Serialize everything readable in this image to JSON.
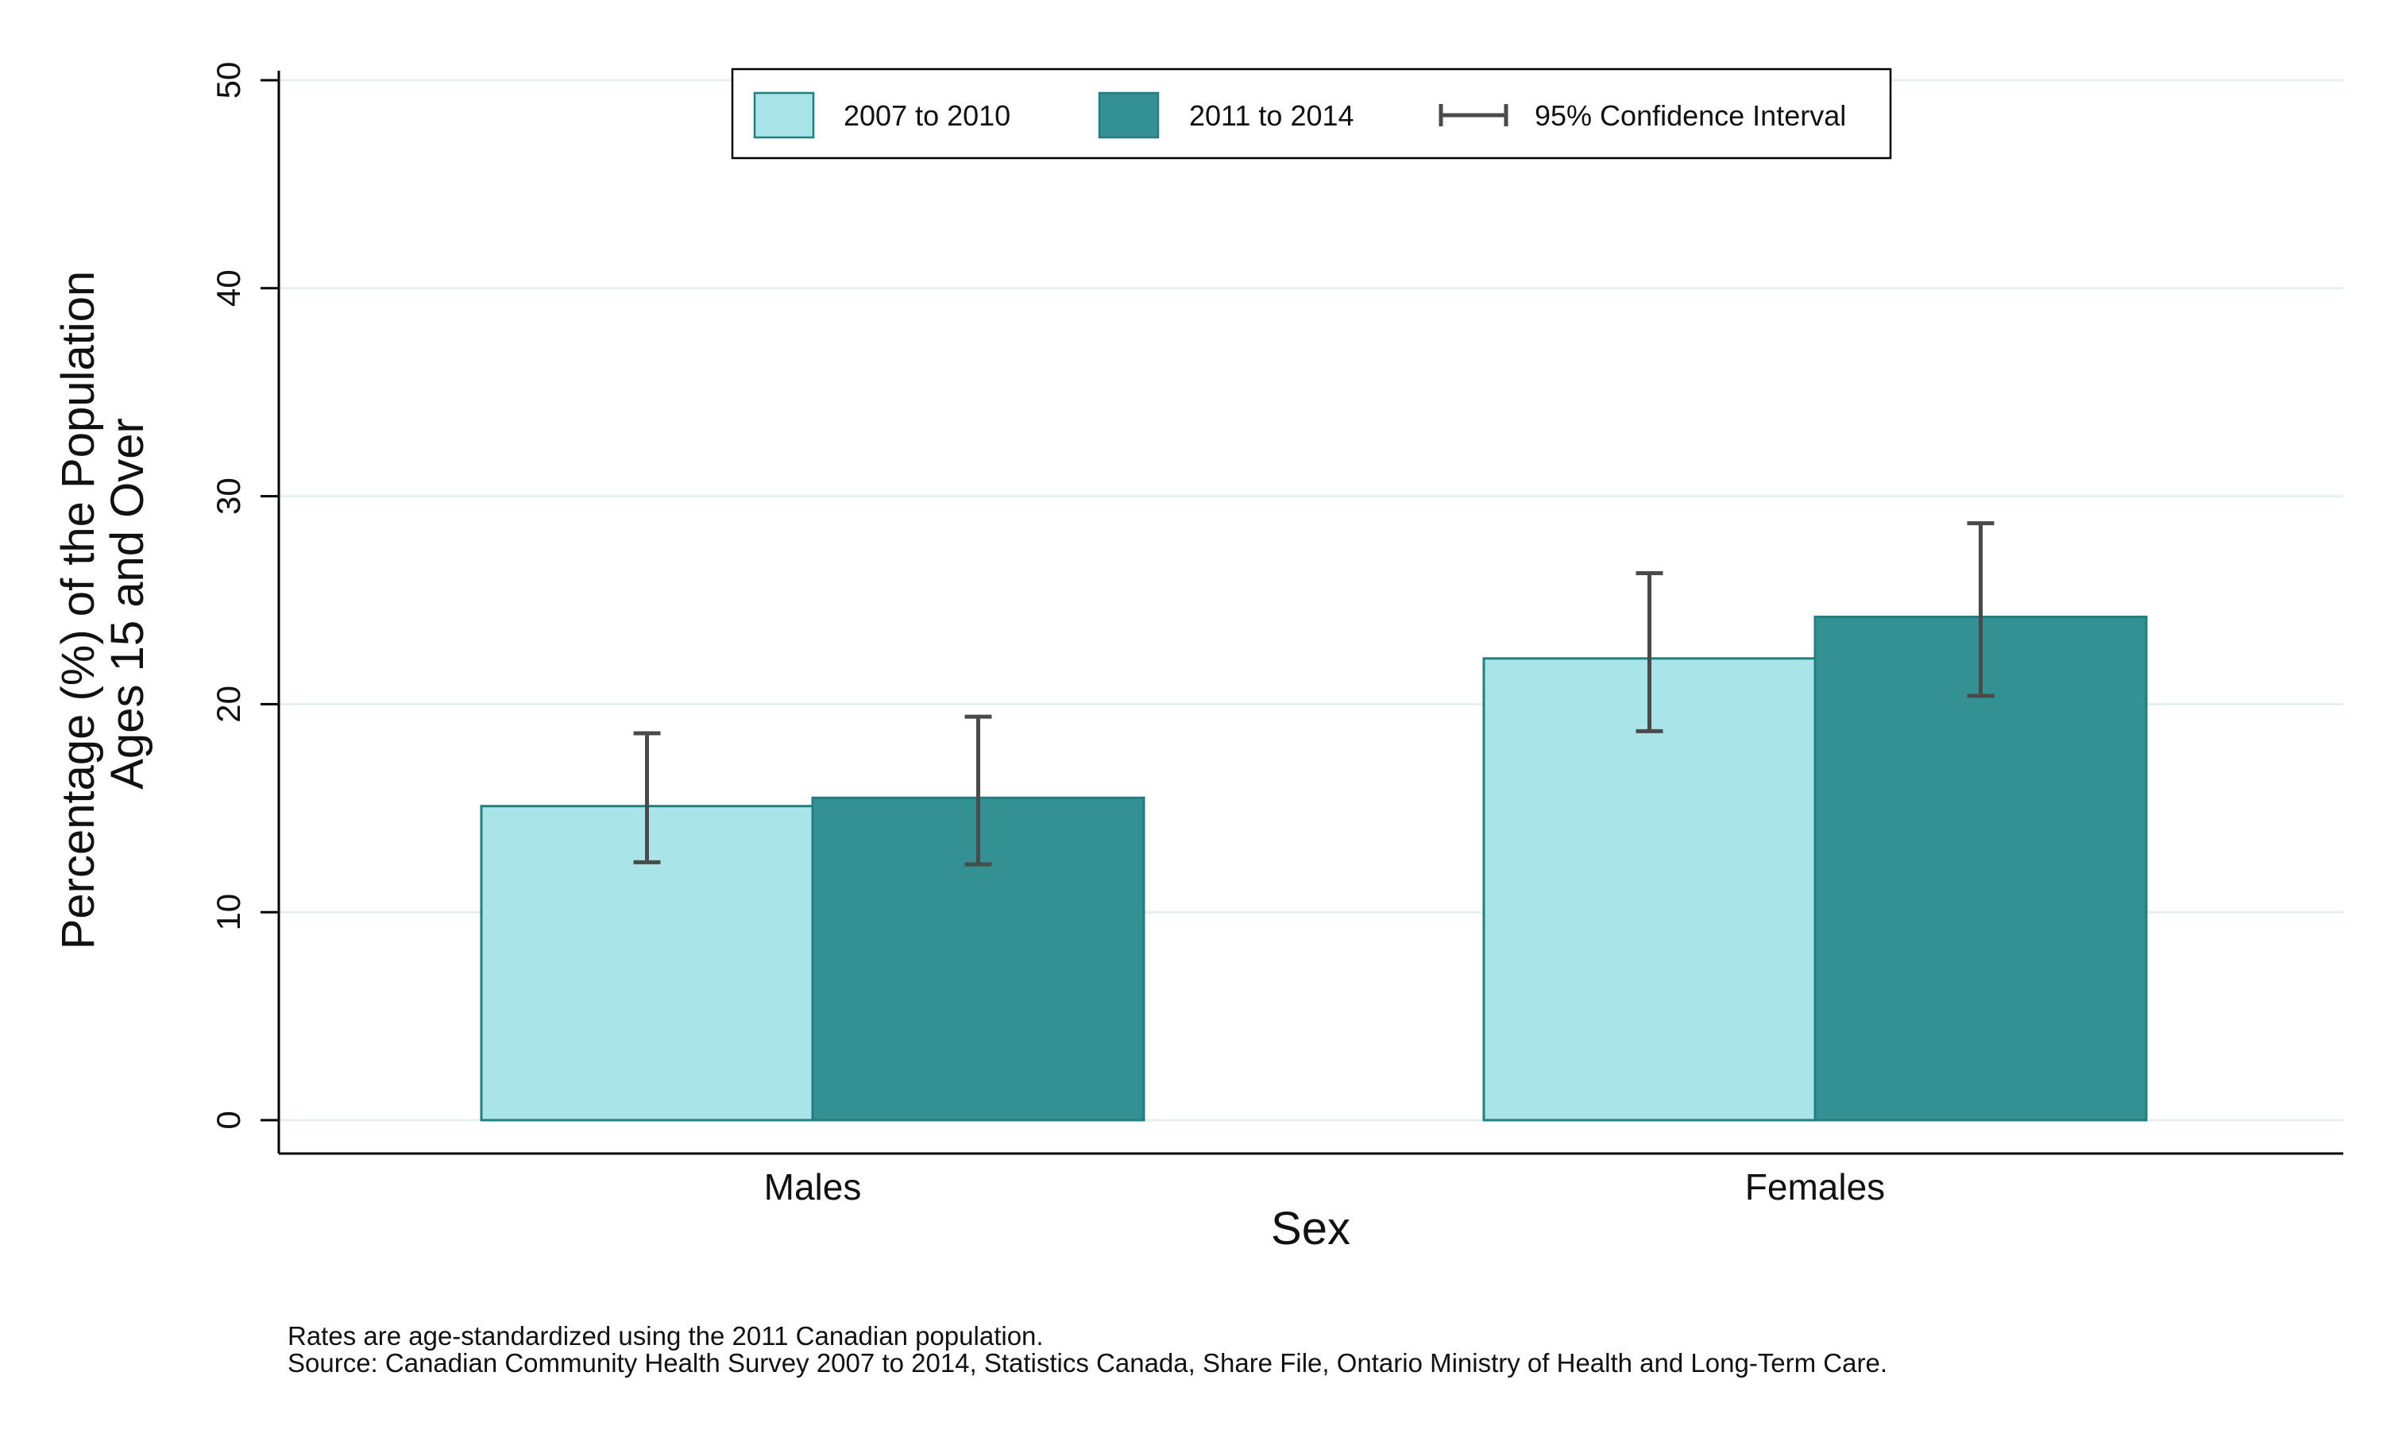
{
  "chart_data": {
    "type": "bar",
    "categories": [
      "Males",
      "Females"
    ],
    "series": [
      {
        "name": "2007 to 2010",
        "values": [
          15.1,
          22.2
        ],
        "ci_lower": [
          12.4,
          18.7
        ],
        "ci_upper": [
          18.6,
          26.3
        ],
        "color": "#a8e4e8"
      },
      {
        "name": "2011 to 2014",
        "values": [
          15.5,
          24.2
        ],
        "ci_lower": [
          12.3,
          20.4
        ],
        "ci_upper": [
          19.4,
          28.7
        ],
        "color": "#339194"
      }
    ],
    "error_bar_label": "95% Confidence Interval",
    "xlabel": "Sex",
    "ylabel": [
      "Percentage (%) of the Population",
      "Ages 15 and Over"
    ],
    "ylim": [
      0,
      50
    ],
    "yticks": [
      0,
      10,
      20,
      30,
      40,
      50
    ],
    "grid": true,
    "legend_position": "top",
    "notes": [
      "Rates are age-standardized using the 2011 Canadian population.",
      "Source: Canadian Community Health Survey 2007 to 2014, Statistics Canada, Share File, Ontario Ministry of Health and Long-Term Care."
    ]
  }
}
